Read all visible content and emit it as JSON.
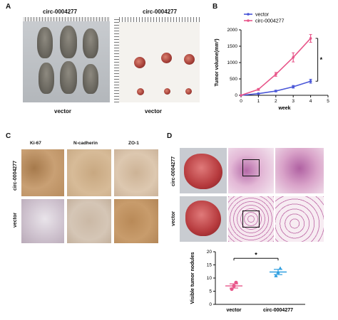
{
  "panels": {
    "a": {
      "letter": "A",
      "left_title": "circ-0004277",
      "right_title": "circ-0004277",
      "left_caption": "vector",
      "right_caption": "vector"
    },
    "b": {
      "letter": "B"
    },
    "c": {
      "letter": "C",
      "columns": [
        "Ki-67",
        "N-cadherin",
        "ZO-1"
      ],
      "rows": [
        "circ-0004277",
        "vector"
      ]
    },
    "d": {
      "letter": "D",
      "rows": [
        "circ-0004277",
        "vector"
      ]
    }
  },
  "chart_data": [
    {
      "type": "line",
      "xlabel": "week",
      "ylabel": "Tumor volume(mm³)",
      "x": [
        0,
        1,
        2,
        3,
        4
      ],
      "xlim": [
        0,
        5
      ],
      "xticks": [
        0,
        1,
        2,
        3,
        4,
        5
      ],
      "ylim": [
        0,
        2000
      ],
      "yticks": [
        0,
        500,
        1000,
        1500,
        2000
      ],
      "legend_position": "top-left",
      "significance": "*",
      "series": [
        {
          "name": "vector",
          "color": "#4a57d8",
          "values": [
            0,
            50,
            130,
            260,
            430
          ],
          "errors": [
            0,
            15,
            25,
            40,
            60
          ]
        },
        {
          "name": "circ-0004277",
          "color": "#e8568a",
          "values": [
            0,
            180,
            640,
            1160,
            1740
          ],
          "errors": [
            0,
            30,
            60,
            140,
            120
          ]
        }
      ]
    },
    {
      "type": "scatter",
      "ylabel": "Visible tumor nodules",
      "categories": [
        "vector",
        "circ-0004277"
      ],
      "ylim": [
        0,
        20
      ],
      "yticks": [
        0,
        5,
        10,
        15,
        20
      ],
      "significance": "*",
      "series": [
        {
          "name": "vector",
          "color": "#e8568a",
          "points": [
            5.8,
            7.0,
            8.3
          ],
          "mean": 7.0,
          "sem": 0.8
        },
        {
          "name": "circ-0004277",
          "color": "#2f9fe0",
          "points": [
            11.0,
            12.3,
            13.8
          ],
          "mean": 12.3,
          "sem": 1.0
        }
      ]
    }
  ]
}
